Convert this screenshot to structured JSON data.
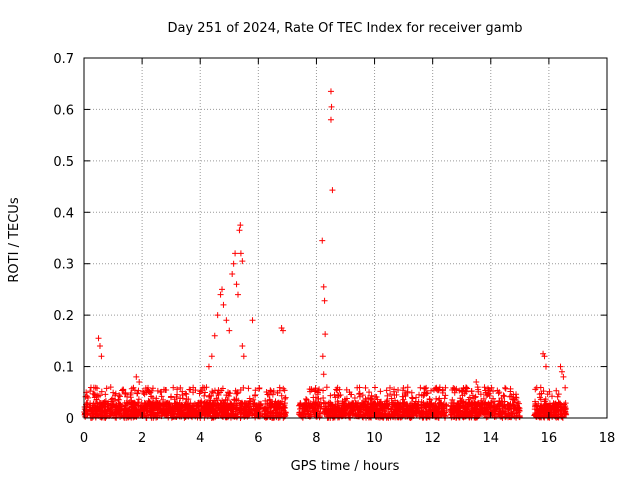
{
  "chart_data": {
    "type": "scatter",
    "title": "Day 251 of 2024, Rate Of TEC Index for receiver gamb",
    "xlabel": "GPS time / hours",
    "ylabel": "ROTI / TECUs",
    "xlim": [
      0,
      18
    ],
    "ylim": [
      0,
      0.7
    ],
    "xticks": [
      0,
      2,
      4,
      6,
      8,
      10,
      12,
      14,
      16,
      18
    ],
    "yticks": [
      0,
      0.1,
      0.2,
      0.3,
      0.4,
      0.5,
      0.6,
      0.7
    ],
    "grid": true,
    "marker": "+",
    "series_color": "#ff0000",
    "baseline_ranges_hours": [
      [
        0,
        6.1
      ],
      [
        6.2,
        6.95
      ],
      [
        7.4,
        12.5
      ],
      [
        12.6,
        15.0
      ],
      [
        15.5,
        16.6
      ]
    ],
    "notable_points": [
      {
        "x": 0.5,
        "y": 0.155
      },
      {
        "x": 0.55,
        "y": 0.14
      },
      {
        "x": 0.6,
        "y": 0.12
      },
      {
        "x": 1.8,
        "y": 0.08
      },
      {
        "x": 1.9,
        "y": 0.07
      },
      {
        "x": 4.3,
        "y": 0.1
      },
      {
        "x": 4.4,
        "y": 0.12
      },
      {
        "x": 4.5,
        "y": 0.16
      },
      {
        "x": 4.6,
        "y": 0.2
      },
      {
        "x": 4.7,
        "y": 0.24
      },
      {
        "x": 4.75,
        "y": 0.25
      },
      {
        "x": 4.8,
        "y": 0.22
      },
      {
        "x": 4.9,
        "y": 0.19
      },
      {
        "x": 5.0,
        "y": 0.17
      },
      {
        "x": 5.1,
        "y": 0.28
      },
      {
        "x": 5.15,
        "y": 0.3
      },
      {
        "x": 5.2,
        "y": 0.32
      },
      {
        "x": 5.25,
        "y": 0.26
      },
      {
        "x": 5.3,
        "y": 0.24
      },
      {
        "x": 5.35,
        "y": 0.365
      },
      {
        "x": 5.38,
        "y": 0.375
      },
      {
        "x": 5.4,
        "y": 0.32
      },
      {
        "x": 5.45,
        "y": 0.305
      },
      {
        "x": 5.45,
        "y": 0.14
      },
      {
        "x": 5.5,
        "y": 0.12
      },
      {
        "x": 5.8,
        "y": 0.19
      },
      {
        "x": 6.8,
        "y": 0.175
      },
      {
        "x": 6.85,
        "y": 0.17
      },
      {
        "x": 8.2,
        "y": 0.345
      },
      {
        "x": 8.25,
        "y": 0.255
      },
      {
        "x": 8.28,
        "y": 0.228
      },
      {
        "x": 8.3,
        "y": 0.163
      },
      {
        "x": 8.22,
        "y": 0.12
      },
      {
        "x": 8.25,
        "y": 0.085
      },
      {
        "x": 8.5,
        "y": 0.635
      },
      {
        "x": 8.52,
        "y": 0.605
      },
      {
        "x": 8.5,
        "y": 0.58
      },
      {
        "x": 8.55,
        "y": 0.443
      },
      {
        "x": 13.5,
        "y": 0.07
      },
      {
        "x": 13.55,
        "y": 0.06
      },
      {
        "x": 15.8,
        "y": 0.125
      },
      {
        "x": 15.85,
        "y": 0.12
      },
      {
        "x": 15.9,
        "y": 0.1
      },
      {
        "x": 16.4,
        "y": 0.1
      },
      {
        "x": 16.45,
        "y": 0.09
      },
      {
        "x": 16.5,
        "y": 0.08
      }
    ]
  }
}
